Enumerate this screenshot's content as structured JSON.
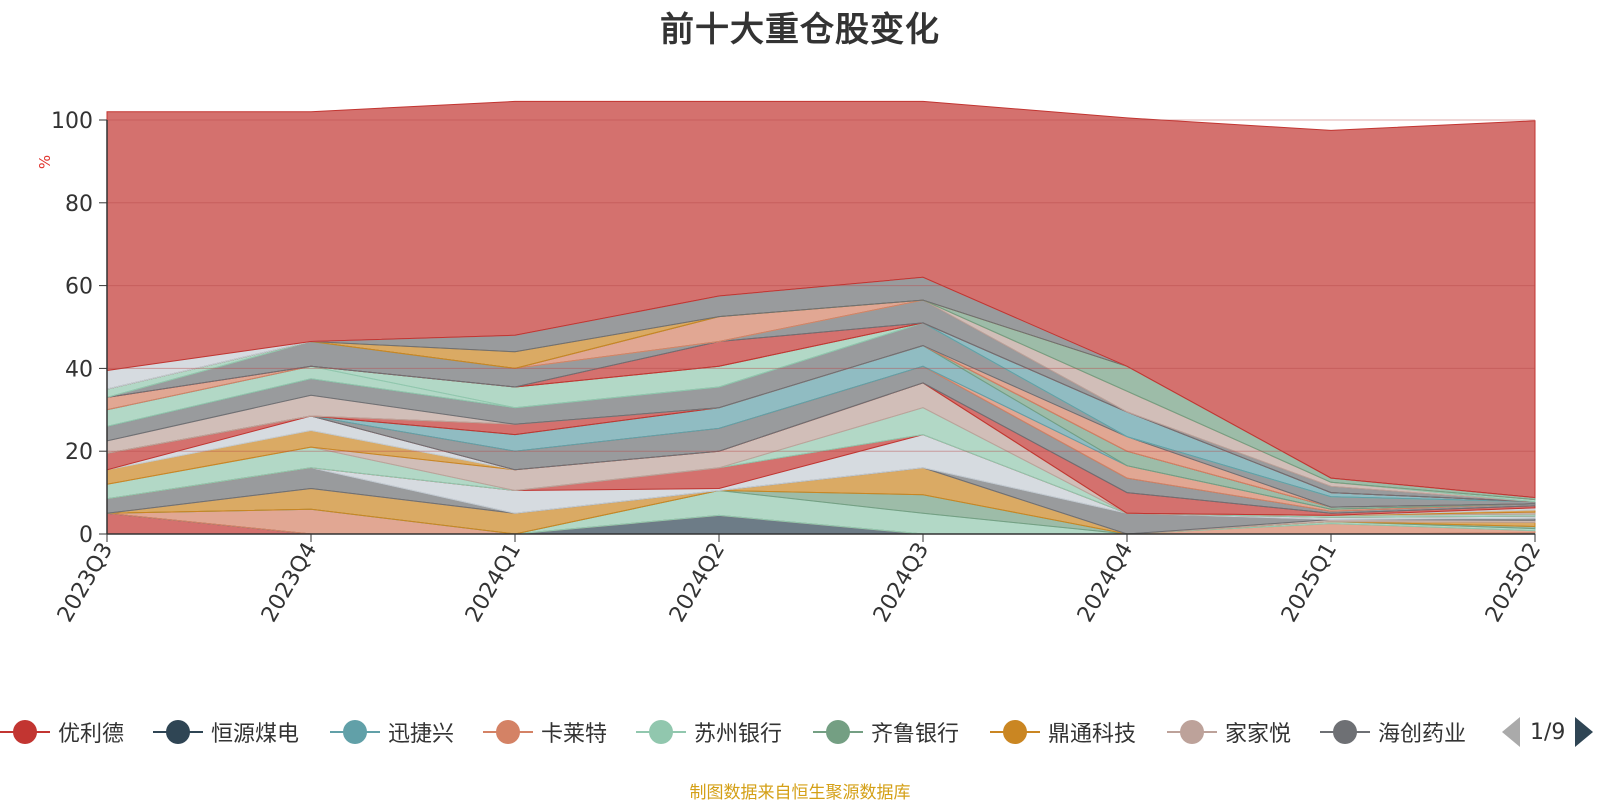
{
  "chart_data": {
    "type": "area",
    "stacked": true,
    "title": "前十大重仓股变化",
    "ylabel": "%",
    "ylim": [
      0,
      100
    ],
    "yticks": [
      "0",
      "20",
      "40",
      "60",
      "80",
      "100"
    ],
    "categories": [
      "2023Q3",
      "2023Q4",
      "2024Q1",
      "2024Q2",
      "2024Q3",
      "2024Q4",
      "2025Q1",
      "2025Q2"
    ],
    "series": [
      {
        "name": "优利德",
        "color": "#c23531",
        "values": [
          5,
          0,
          0,
          0,
          0,
          0,
          0,
          0
        ]
      },
      {
        "name": "恒源煤电",
        "color": "#2f4554",
        "values": [
          0,
          0,
          0,
          4.5,
          0,
          0,
          0,
          0
        ]
      },
      {
        "name": "迅捷兴",
        "color": "#61a0a8",
        "values": [
          0,
          0,
          0,
          0,
          0,
          0,
          0,
          0.3
        ]
      },
      {
        "name": "卡莱特",
        "color": "#d48265",
        "values": [
          0,
          6,
          0,
          0,
          0,
          0,
          2.5,
          0.5
        ]
      },
      {
        "name": "苏州银行",
        "color": "#91c7ae",
        "values": [
          0,
          0,
          0,
          6,
          5,
          0,
          0.5,
          0.5
        ]
      },
      {
        "name": "齐鲁银行",
        "color": "#749f83",
        "values": [
          0,
          0,
          0,
          0,
          4.5,
          0,
          0,
          0.5
        ]
      },
      {
        "name": "鼎通科技",
        "color": "#ca8622",
        "values": [
          0,
          5,
          5,
          0,
          6.5,
          0,
          0,
          1
        ]
      },
      {
        "name": "家家悦",
        "color": "#bda29a",
        "values": [
          0,
          0,
          0,
          0,
          0,
          0,
          0.5,
          0.5
        ]
      },
      {
        "name": "海创药业",
        "color": "#6e7074",
        "values": [
          3.5,
          5,
          0,
          0,
          0,
          5,
          0,
          0.5
        ]
      },
      {
        "name": "",
        "color": "#c4ccd3",
        "values": [
          0,
          0,
          5.5,
          0.5,
          8,
          0,
          0.5,
          0.5
        ]
      },
      {
        "name": "",
        "color": "#c23531",
        "values": [
          0,
          0,
          0,
          5,
          0,
          0,
          0,
          0
        ]
      },
      {
        "name": "",
        "color": "#91c7ae",
        "values": [
          3.5,
          5,
          0,
          0,
          6.5,
          0,
          0.5,
          0.5
        ]
      },
      {
        "name": "",
        "color": "#bda29a",
        "values": [
          0,
          0,
          5,
          4,
          6,
          0,
          0,
          0.5
        ]
      },
      {
        "name": "",
        "color": "#ca8622",
        "values": [
          3.5,
          4,
          0,
          0,
          0,
          0,
          0,
          0.5
        ]
      },
      {
        "name": "",
        "color": "#c4ccd3",
        "values": [
          0,
          3.5,
          0,
          0,
          0,
          0,
          0,
          0.5
        ]
      },
      {
        "name": "",
        "color": "#c23531",
        "values": [
          4,
          0,
          0,
          0,
          0,
          5,
          0.5,
          0.5
        ]
      },
      {
        "name": "",
        "color": "#6e7074",
        "values": [
          0,
          0,
          4.5,
          5.5,
          4,
          3.5,
          0.5,
          0.5
        ]
      },
      {
        "name": "",
        "color": "#d48265",
        "values": [
          0,
          0,
          0,
          0,
          0,
          3,
          0.5,
          0
        ]
      },
      {
        "name": "",
        "color": "#61a0a8",
        "values": [
          0,
          0,
          4,
          5,
          5,
          0,
          0,
          0
        ]
      },
      {
        "name": "",
        "color": "#749f83",
        "values": [
          0,
          0,
          0,
          0,
          0,
          3.5,
          0.5,
          0
        ]
      },
      {
        "name": "",
        "color": "#c23531",
        "values": [
          0,
          0,
          2.5,
          0,
          0,
          0,
          0,
          0
        ]
      },
      {
        "name": "",
        "color": "#d48265",
        "values": [
          0,
          0,
          0,
          0,
          0,
          3.5,
          0,
          0
        ]
      },
      {
        "name": "",
        "color": "#bda29a",
        "values": [
          3,
          5,
          0,
          0,
          0,
          0,
          0,
          0
        ]
      },
      {
        "name": "",
        "color": "#6e7074",
        "values": [
          3.5,
          4,
          4,
          5,
          5.5,
          0,
          2.5,
          0.5
        ]
      },
      {
        "name": "",
        "color": "#91c7ae",
        "values": [
          4,
          3,
          0,
          0,
          0,
          0,
          0,
          0
        ]
      },
      {
        "name": "",
        "color": "#91c7ae",
        "values": [
          0,
          0,
          5,
          5,
          0,
          0,
          0,
          0
        ]
      },
      {
        "name": "",
        "color": "#61a0a8",
        "values": [
          0,
          0,
          0,
          0,
          0,
          6,
          1,
          0
        ]
      },
      {
        "name": "",
        "color": "#d48265",
        "values": [
          3,
          0,
          0,
          0,
          0,
          0,
          0,
          0
        ]
      },
      {
        "name": "",
        "color": "#c23531",
        "values": [
          0,
          0,
          0,
          6,
          0,
          0,
          0,
          0
        ]
      },
      {
        "name": "",
        "color": "#6e7074",
        "values": [
          0,
          6,
          4.5,
          0,
          5.5,
          0,
          1.5,
          0
        ]
      },
      {
        "name": "",
        "color": "#bda29a",
        "values": [
          0,
          0,
          0,
          0,
          0,
          5,
          1,
          0
        ]
      },
      {
        "name": "",
        "color": "#91c7ae",
        "values": [
          2,
          0,
          0,
          0,
          0,
          0,
          0,
          0.5
        ]
      },
      {
        "name": "",
        "color": "#d48265",
        "values": [
          0,
          0,
          0,
          6,
          0,
          0,
          0,
          0
        ]
      },
      {
        "name": "",
        "color": "#749f83",
        "values": [
          0,
          0,
          0,
          0,
          0,
          6,
          1,
          0.5
        ]
      },
      {
        "name": "",
        "color": "#ca8622",
        "values": [
          0,
          0,
          4,
          0,
          0,
          0,
          0,
          0
        ]
      },
      {
        "name": "",
        "color": "#6e7074",
        "values": [
          0,
          0,
          4,
          5,
          5.5,
          0,
          0,
          0
        ]
      },
      {
        "name": "",
        "color": "#c4ccd3",
        "values": [
          4.5,
          0,
          0,
          0,
          0,
          0,
          0,
          0
        ]
      },
      {
        "name": "",
        "color": "#c23531",
        "values": [
          62.5,
          55.5,
          56.5,
          47,
          42.5,
          60,
          84,
          91
        ]
      }
    ]
  },
  "legend": {
    "items": [
      {
        "label": "优利德",
        "color": "#c23531"
      },
      {
        "label": "恒源煤电",
        "color": "#2f4554"
      },
      {
        "label": "迅捷兴",
        "color": "#61a0a8"
      },
      {
        "label": "卡莱特",
        "color": "#d48265"
      },
      {
        "label": "苏州银行",
        "color": "#91c7ae"
      },
      {
        "label": "齐鲁银行",
        "color": "#749f83"
      },
      {
        "label": "鼎通科技",
        "color": "#ca8622"
      },
      {
        "label": "家家悦",
        "color": "#bda29a"
      },
      {
        "label": "海创药业",
        "color": "#6e7074"
      }
    ],
    "page": "1/9"
  },
  "footer": {
    "source": "制图数据来自恒生聚源数据库"
  }
}
